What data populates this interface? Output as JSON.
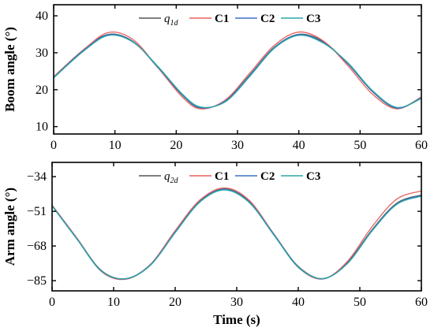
{
  "chart_data": [
    {
      "type": "line",
      "xlabel": "",
      "ylabel": "Boom angle (°)",
      "xlim": [
        0,
        60
      ],
      "ylim": [
        8,
        43
      ],
      "xticks": [
        0,
        10,
        20,
        30,
        40,
        50,
        60
      ],
      "yticks": [
        10,
        20,
        30,
        40
      ],
      "legend": "top-center",
      "grid": false,
      "x": [
        0,
        5,
        9,
        13,
        17,
        21,
        24,
        28,
        32,
        36,
        40,
        44,
        48,
        52,
        56,
        60
      ],
      "series": [
        {
          "name": "q",
          "sub": "1d",
          "color": "#555555",
          "values": [
            23.5,
            31.0,
            35.0,
            33.0,
            26.0,
            18.5,
            15.0,
            17.0,
            24.0,
            31.5,
            35.0,
            33.0,
            27.0,
            19.5,
            15.0,
            18.0
          ]
        },
        {
          "name": "C1",
          "color": "#e8615f",
          "values": [
            23.5,
            31.0,
            35.5,
            33.5,
            26.0,
            18.0,
            14.8,
            17.2,
            24.5,
            32.0,
            35.6,
            33.2,
            26.5,
            18.8,
            14.8,
            18.0
          ]
        },
        {
          "name": "C2",
          "color": "#3a72c4",
          "values": [
            23.3,
            30.8,
            34.9,
            32.9,
            26.1,
            18.6,
            15.1,
            16.9,
            23.9,
            31.4,
            34.9,
            32.8,
            27.1,
            19.6,
            15.0,
            17.8
          ]
        },
        {
          "name": "C3",
          "color": "#2aa6a6",
          "values": [
            23.2,
            30.6,
            34.7,
            32.8,
            26.3,
            18.8,
            15.3,
            16.7,
            23.6,
            31.2,
            34.7,
            32.6,
            27.3,
            19.8,
            15.2,
            17.6
          ]
        }
      ]
    },
    {
      "type": "line",
      "xlabel": "Time (s)",
      "ylabel": "Arm angle (°)",
      "xlim": [
        0,
        60
      ],
      "ylim": [
        -90,
        -27
      ],
      "xticks": [
        0,
        10,
        20,
        30,
        40,
        50,
        60
      ],
      "yticks": [
        -34,
        -51,
        -68,
        -85
      ],
      "legend": "top-center",
      "grid": false,
      "x": [
        0,
        4,
        8,
        12,
        16,
        20,
        24,
        28,
        32,
        36,
        40,
        44,
        48,
        52,
        56,
        60
      ],
      "series": [
        {
          "name": "q",
          "sub": "2d",
          "color": "#555555",
          "values": [
            -48.0,
            -64.0,
            -80.0,
            -84.0,
            -77.0,
            -61.0,
            -46.0,
            -40.0,
            -46.0,
            -62.0,
            -78.0,
            -84.0,
            -76.0,
            -60.0,
            -47.0,
            -43.0
          ]
        },
        {
          "name": "C1",
          "color": "#e8615f",
          "values": [
            -48.0,
            -64.0,
            -80.5,
            -84.3,
            -77.0,
            -60.5,
            -45.5,
            -39.5,
            -45.5,
            -62.0,
            -78.5,
            -84.2,
            -75.5,
            -58.5,
            -45.0,
            -41.0
          ]
        },
        {
          "name": "C2",
          "color": "#3a72c4",
          "values": [
            -48.2,
            -64.3,
            -80.2,
            -84.1,
            -77.2,
            -61.2,
            -46.2,
            -40.2,
            -46.3,
            -62.2,
            -78.2,
            -84.1,
            -76.3,
            -60.3,
            -47.3,
            -43.3
          ]
        },
        {
          "name": "C3",
          "color": "#2aa6a6",
          "values": [
            -48.4,
            -64.5,
            -80.3,
            -84.0,
            -77.4,
            -61.5,
            -46.5,
            -40.5,
            -46.6,
            -62.5,
            -78.4,
            -84.0,
            -76.6,
            -60.6,
            -47.6,
            -43.6
          ]
        }
      ]
    }
  ]
}
